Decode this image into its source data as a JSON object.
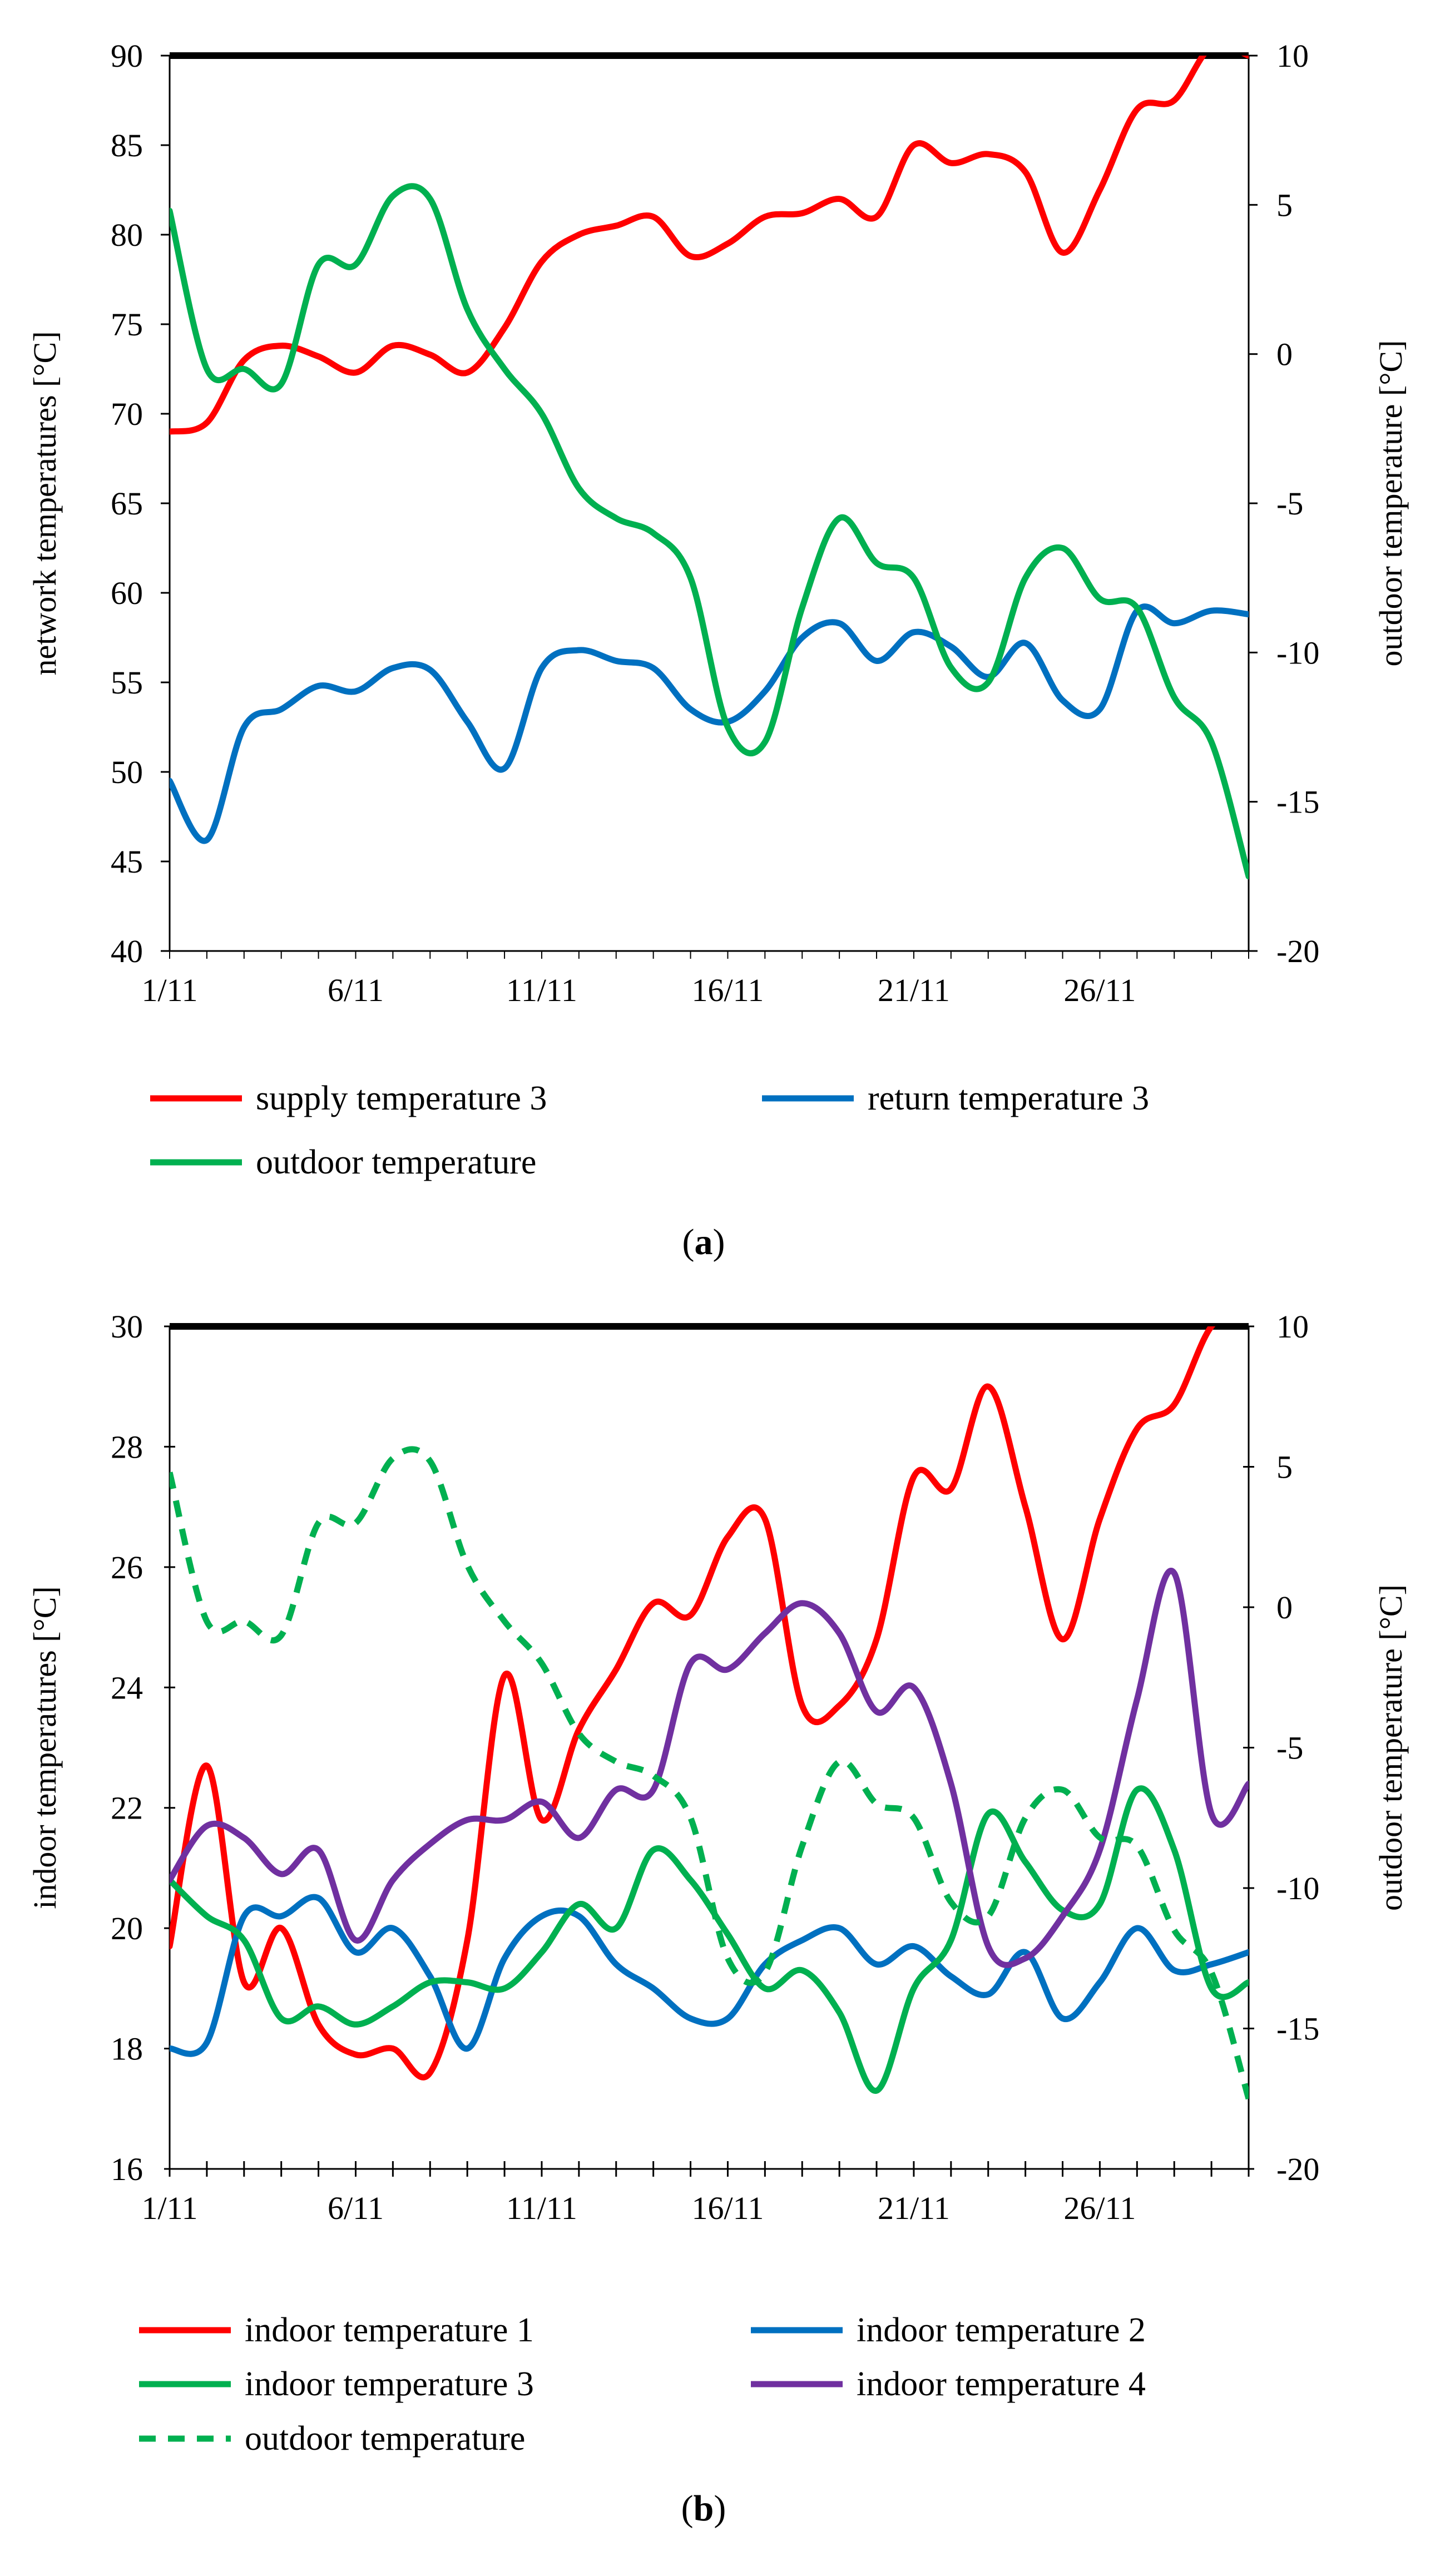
{
  "chart_data": [
    {
      "type": "line",
      "panel": "a",
      "caption_label": "a",
      "x_tick_labels": [
        "1/11",
        "6/11",
        "11/11",
        "16/11",
        "21/11",
        "26/11"
      ],
      "xlim": [
        1,
        30
      ],
      "ylabel": "network temperatures [°C]",
      "ylim": [
        40,
        90
      ],
      "y_ticks": [
        40,
        45,
        50,
        55,
        60,
        65,
        70,
        75,
        80,
        85,
        90
      ],
      "y2label": "outdoor temperature [°C]",
      "y2lim": [
        -20,
        10
      ],
      "y2_ticks": [
        -20,
        -15,
        -10,
        -5,
        0,
        5,
        10
      ],
      "series": [
        {
          "name": "supply temperature 3",
          "color": "#ff0000",
          "axis": "left",
          "dashed": false,
          "x": [
            1,
            2,
            3,
            4,
            5,
            6,
            7,
            8,
            9,
            10,
            11,
            12,
            13,
            14,
            15,
            16,
            17,
            18,
            19,
            20,
            21,
            22,
            23,
            24,
            25,
            26,
            27,
            28,
            29,
            30
          ],
          "values": [
            69,
            69.5,
            73,
            73.8,
            73.2,
            72.3,
            73.8,
            73.3,
            72.3,
            74.8,
            78.5,
            80,
            80.5,
            81,
            78.8,
            79.5,
            81,
            81.2,
            82,
            81,
            85,
            84,
            84.5,
            83.5,
            79,
            82.5,
            87,
            87.5,
            90.5,
            90
          ]
        },
        {
          "name": "return temperature 3",
          "color": "#0070c0",
          "axis": "left",
          "dashed": false,
          "x": [
            1,
            2,
            3,
            4,
            5,
            6,
            7,
            8,
            9,
            10,
            11,
            12,
            13,
            14,
            15,
            16,
            17,
            18,
            19,
            20,
            21,
            22,
            23,
            24,
            25,
            26,
            27,
            28,
            29,
            30
          ],
          "values": [
            49.5,
            46.2,
            52.5,
            53.5,
            54.8,
            54.5,
            55.8,
            55.7,
            52.8,
            50.2,
            55.8,
            56.8,
            56.2,
            55.8,
            53.5,
            52.8,
            54.5,
            57.5,
            58.3,
            56.2,
            57.8,
            57,
            55.3,
            57.2,
            54,
            53.5,
            59,
            58.3,
            59,
            58.8
          ]
        },
        {
          "name": "outdoor temperature",
          "color": "#00b050",
          "axis": "right",
          "dashed": false,
          "x": [
            1,
            2,
            3,
            4,
            5,
            6,
            7,
            8,
            9,
            10,
            11,
            12,
            13,
            14,
            15,
            16,
            17,
            18,
            19,
            20,
            21,
            22,
            23,
            24,
            25,
            26,
            27,
            28,
            29,
            30
          ],
          "values": [
            4.8,
            -0.5,
            -0.5,
            -1,
            3,
            3,
            5.3,
            5.2,
            1.5,
            -0.5,
            -2,
            -4.5,
            -5.5,
            -6,
            -7.5,
            -12.5,
            -13,
            -8.5,
            -5.5,
            -7,
            -7.5,
            -10.5,
            -11,
            -7.5,
            -6.5,
            -8.2,
            -8.5,
            -11.5,
            -13,
            -17.5
          ]
        }
      ]
    },
    {
      "type": "line",
      "panel": "b",
      "caption_label": "b",
      "x_tick_labels": [
        "1/11",
        "6/11",
        "11/11",
        "16/11",
        "21/11",
        "26/11"
      ],
      "xlim": [
        1,
        30
      ],
      "ylabel": "indoor temperatures [°C]",
      "ylim": [
        16,
        30
      ],
      "y_ticks": [
        16,
        18,
        20,
        22,
        24,
        26,
        28,
        30
      ],
      "y2label": "outdoor temperature [°C]",
      "y2lim": [
        -20,
        10
      ],
      "y2_ticks": [
        -20,
        -15,
        -10,
        -5,
        0,
        5,
        10
      ],
      "series": [
        {
          "name": "indoor temperature 1",
          "color": "#ff0000",
          "axis": "left",
          "dashed": false,
          "x": [
            1,
            2,
            3,
            4,
            5,
            6,
            7,
            8,
            9,
            10,
            11,
            12,
            13,
            14,
            15,
            16,
            17,
            18,
            19,
            20,
            21,
            22,
            23,
            24,
            25,
            26,
            27,
            28,
            29,
            30
          ],
          "values": [
            19.7,
            22.7,
            19.1,
            20,
            18.4,
            17.9,
            18,
            17.6,
            19.8,
            24.2,
            21.8,
            23.3,
            24.3,
            25.4,
            25.2,
            26.5,
            26.8,
            23.7,
            23.7,
            24.8,
            27.5,
            27.3,
            29,
            27,
            24.8,
            26.8,
            28.3,
            28.7,
            30,
            30.3
          ]
        },
        {
          "name": "indoor temperature 2",
          "color": "#0070c0",
          "axis": "left",
          "dashed": false,
          "x": [
            1,
            2,
            3,
            4,
            5,
            6,
            7,
            8,
            9,
            10,
            11,
            12,
            13,
            14,
            15,
            16,
            17,
            18,
            19,
            20,
            21,
            22,
            23,
            24,
            25,
            26,
            27,
            28,
            29,
            30
          ],
          "values": [
            18,
            18.1,
            20.2,
            20.2,
            20.5,
            19.6,
            20,
            19.2,
            18,
            19.5,
            20.2,
            20.2,
            19.4,
            19,
            18.5,
            18.5,
            19.4,
            19.8,
            20,
            19.4,
            19.7,
            19.2,
            18.9,
            19.6,
            18.5,
            19.1,
            20,
            19.3,
            19.4,
            19.6
          ]
        },
        {
          "name": "indoor temperature 3",
          "color": "#00b050",
          "axis": "left",
          "dashed": false,
          "x": [
            1,
            2,
            3,
            4,
            5,
            6,
            7,
            8,
            9,
            10,
            11,
            12,
            13,
            14,
            15,
            16,
            17,
            18,
            19,
            20,
            21,
            22,
            23,
            24,
            25,
            26,
            27,
            28,
            29,
            30
          ],
          "values": [
            20.8,
            20.2,
            19.8,
            18.5,
            18.7,
            18.4,
            18.7,
            19.1,
            19.1,
            19,
            19.6,
            20.4,
            20,
            21.3,
            20.8,
            19.9,
            19,
            19.3,
            18.6,
            17.3,
            19,
            19.8,
            21.9,
            21.1,
            20.3,
            20.4,
            22.3,
            21.3,
            19,
            19.1
          ]
        },
        {
          "name": "indoor temperature 4",
          "color": "#7030a0",
          "axis": "left",
          "dashed": false,
          "x": [
            1,
            2,
            3,
            4,
            5,
            6,
            7,
            8,
            9,
            10,
            11,
            12,
            13,
            14,
            15,
            16,
            17,
            18,
            19,
            20,
            21,
            22,
            23,
            24,
            25,
            26,
            27,
            28,
            29,
            30
          ],
          "values": [
            20.8,
            21.7,
            21.5,
            20.9,
            21.3,
            19.8,
            20.8,
            21.4,
            21.8,
            21.8,
            22.1,
            21.5,
            22.3,
            22.3,
            24.4,
            24.3,
            24.9,
            25.4,
            24.9,
            23.6,
            24,
            22.4,
            19.7,
            19.5,
            20.2,
            21.3,
            23.8,
            25.9,
            21.9,
            22.4
          ]
        },
        {
          "name": "outdoor temperature",
          "color": "#00b050",
          "axis": "right",
          "dashed": true,
          "x": [
            1,
            2,
            3,
            4,
            5,
            6,
            7,
            8,
            9,
            10,
            11,
            12,
            13,
            14,
            15,
            16,
            17,
            18,
            19,
            20,
            21,
            22,
            23,
            24,
            25,
            26,
            27,
            28,
            29,
            30
          ],
          "values": [
            4.8,
            -0.5,
            -0.5,
            -1,
            3,
            3,
            5.3,
            5.2,
            1.5,
            -0.5,
            -2,
            -4.5,
            -5.5,
            -6,
            -7.5,
            -12.5,
            -13,
            -8.5,
            -5.5,
            -7,
            -7.5,
            -10.5,
            -11,
            -7.5,
            -6.5,
            -8.2,
            -8.5,
            -11.5,
            -13,
            -17.5
          ]
        }
      ]
    }
  ]
}
